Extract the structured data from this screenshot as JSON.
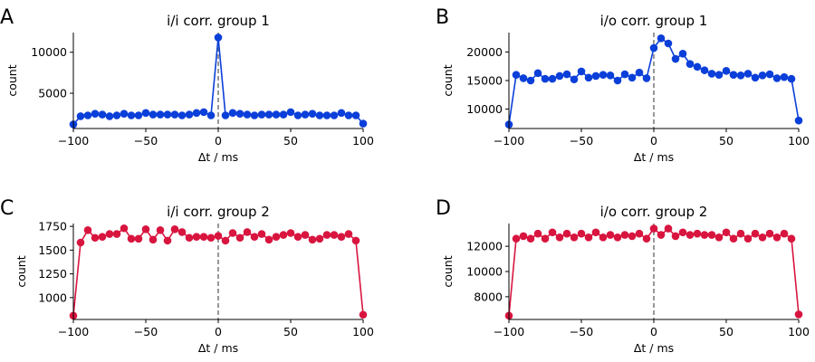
{
  "chart_data": [
    {
      "type": "line",
      "panel_label": "A",
      "title": "i/i corr. group 1",
      "xlabel": "Δt / ms",
      "ylabel": "count",
      "xlim": [
        -100,
        100
      ],
      "ylim": [
        700,
        12400
      ],
      "xticks": [
        -100,
        -50,
        0,
        50,
        100
      ],
      "yticks": [
        5000,
        10000
      ],
      "color": "#0b3fd9",
      "x": [
        -100,
        -95,
        -90,
        -85,
        -80,
        -75,
        -70,
        -65,
        -60,
        -55,
        -50,
        -45,
        -40,
        -35,
        -30,
        -25,
        -20,
        -15,
        -10,
        -5,
        0,
        5,
        10,
        15,
        20,
        25,
        30,
        35,
        40,
        45,
        50,
        55,
        60,
        65,
        70,
        75,
        80,
        85,
        90,
        95,
        100
      ],
      "values": [
        1200,
        2200,
        2300,
        2500,
        2400,
        2200,
        2300,
        2500,
        2300,
        2300,
        2600,
        2400,
        2400,
        2400,
        2400,
        2300,
        2400,
        2600,
        2700,
        2300,
        11800,
        2300,
        2600,
        2500,
        2400,
        2300,
        2400,
        2400,
        2400,
        2400,
        2700,
        2300,
        2400,
        2500,
        2300,
        2300,
        2300,
        2600,
        2300,
        2300,
        1300
      ]
    },
    {
      "type": "line",
      "panel_label": "B",
      "title": "i/o corr. group 1",
      "xlabel": "Δt / ms",
      "ylabel": "count",
      "xlim": [
        -100,
        100
      ],
      "ylim": [
        6600,
        23400
      ],
      "xticks": [
        -100,
        -50,
        0,
        50,
        100
      ],
      "yticks": [
        10000,
        15000,
        20000
      ],
      "color": "#0b3fd9",
      "x": [
        -100,
        -95,
        -90,
        -85,
        -80,
        -75,
        -70,
        -65,
        -60,
        -55,
        -50,
        -45,
        -40,
        -35,
        -30,
        -25,
        -20,
        -15,
        -10,
        -5,
        0,
        5,
        10,
        15,
        20,
        25,
        30,
        35,
        40,
        45,
        50,
        55,
        60,
        65,
        70,
        75,
        80,
        85,
        90,
        95,
        100
      ],
      "values": [
        7300,
        16000,
        15400,
        15000,
        16300,
        15300,
        15300,
        15800,
        16100,
        15200,
        16600,
        15500,
        15800,
        16000,
        15900,
        15000,
        16100,
        15500,
        16400,
        15400,
        20700,
        22400,
        21500,
        18800,
        19700,
        17900,
        17400,
        16800,
        16200,
        16000,
        16700,
        16000,
        15900,
        16200,
        15500,
        15900,
        16100,
        15400,
        15600,
        15300,
        8000
      ]
    },
    {
      "type": "line",
      "panel_label": "C",
      "title": "i/i corr. group 2",
      "xlabel": "Δt / ms",
      "ylabel": "count",
      "xlim": [
        -100,
        100
      ],
      "ylim": [
        770,
        1780
      ],
      "xticks": [
        -100,
        -50,
        0,
        50,
        100
      ],
      "yticks": [
        1000,
        1250,
        1500,
        1750
      ],
      "color": "#d8153f",
      "x": [
        -100,
        -95,
        -90,
        -85,
        -80,
        -75,
        -70,
        -65,
        -60,
        -55,
        -50,
        -45,
        -40,
        -35,
        -30,
        -25,
        -20,
        -15,
        -10,
        -5,
        0,
        5,
        10,
        15,
        20,
        25,
        30,
        35,
        40,
        45,
        50,
        55,
        60,
        65,
        70,
        75,
        80,
        85,
        90,
        95,
        100
      ],
      "values": [
        810,
        1580,
        1710,
        1630,
        1640,
        1670,
        1670,
        1730,
        1620,
        1620,
        1720,
        1610,
        1710,
        1600,
        1720,
        1690,
        1630,
        1640,
        1640,
        1630,
        1650,
        1600,
        1680,
        1630,
        1690,
        1640,
        1670,
        1610,
        1640,
        1660,
        1680,
        1640,
        1660,
        1610,
        1620,
        1660,
        1660,
        1640,
        1670,
        1600,
        820
      ]
    },
    {
      "type": "line",
      "panel_label": "D",
      "title": "i/o corr. group 2",
      "xlabel": "Δt / ms",
      "ylabel": "count",
      "xlim": [
        -100,
        100
      ],
      "ylim": [
        6200,
        13800
      ],
      "xticks": [
        -100,
        -50,
        0,
        50,
        100
      ],
      "yticks": [
        8000,
        10000,
        12000
      ],
      "color": "#d8153f",
      "x": [
        -100,
        -95,
        -90,
        -85,
        -80,
        -75,
        -70,
        -65,
        -60,
        -55,
        -50,
        -45,
        -40,
        -35,
        -30,
        -25,
        -20,
        -15,
        -10,
        -5,
        0,
        5,
        10,
        15,
        20,
        25,
        30,
        35,
        40,
        45,
        50,
        55,
        60,
        65,
        70,
        75,
        80,
        85,
        90,
        95,
        100
      ],
      "values": [
        6500,
        12600,
        12800,
        12600,
        13000,
        12600,
        13100,
        12700,
        13000,
        12700,
        13000,
        12700,
        13100,
        12700,
        12900,
        12700,
        12900,
        12800,
        13000,
        12600,
        13400,
        12900,
        13400,
        12800,
        13100,
        12900,
        13000,
        12900,
        12900,
        12700,
        13100,
        12600,
        13000,
        12600,
        13000,
        12700,
        13000,
        12700,
        13000,
        12600,
        6600
      ]
    }
  ]
}
